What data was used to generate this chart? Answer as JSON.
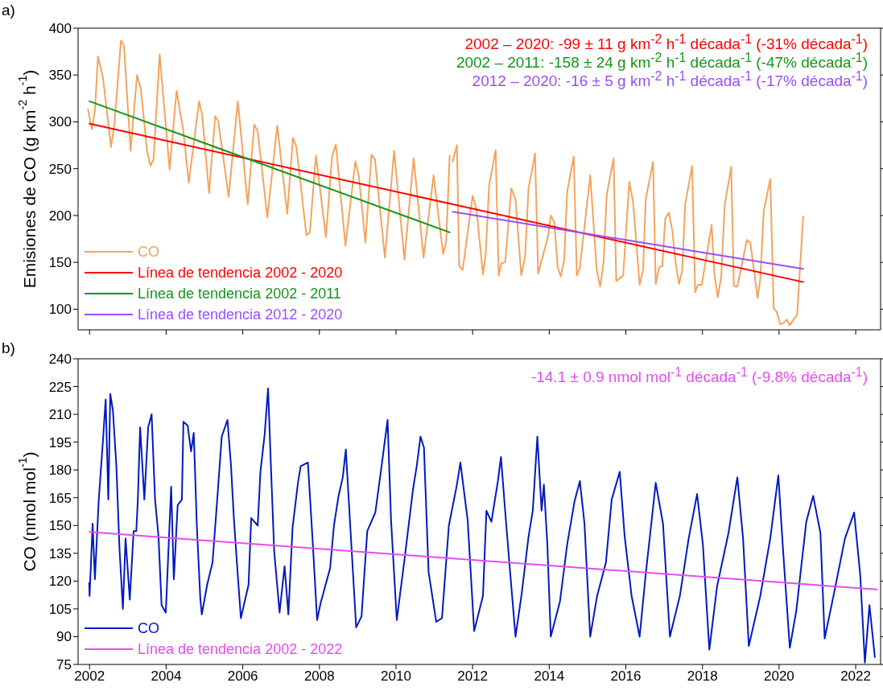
{
  "chart_data": [
    {
      "type": "line",
      "title": "a)",
      "ylabel": "Emisiones de CO (g km$^{-2}$ h$^{-1}$)",
      "xlim": [
        2001.7,
        2022.65
      ],
      "xticks": [
        2002,
        2004,
        2006,
        2008,
        2010,
        2012,
        2014,
        2016,
        2018,
        2020,
        2022
      ],
      "ylim": [
        78,
        400
      ],
      "yticks": [
        100,
        150,
        200,
        250,
        300,
        350,
        400
      ],
      "tick_labels": "y",
      "legend": "bottom left",
      "marker": "none",
      "annotations": [
        "2002 – 2020: -99 ± 11 g km$^{-2}$ h$^{-1}$ década$^{-1}$ (-31% década$^{-1}$)",
        "2002 – 2011: -158 ± 24 g km$^{-2}$ h$^{-1}$ década$^{-1}$ (-47% década$^{-1}$)",
        "2012 – 2020: -16 ± 5 g km$^{-2}$ h$^{-1}$ década$^{-1}$ (-17% década$^{-1}$)"
      ],
      "series": [
        {
          "name": "CO",
          "color": "#f5a35c",
          "x": [
            2001.96,
            2002.06,
            2002.14,
            2002.22,
            2002.35,
            2002.56,
            2002.65,
            2002.82,
            2002.9,
            2003.07,
            2003.24,
            2003.34,
            2003.5,
            2003.59,
            2003.67,
            2003.83,
            2004.09,
            2004.27,
            2004.44,
            2004.59,
            2004.86,
            2004.94,
            2005.12,
            2005.28,
            2005.36,
            2005.63,
            2005.87,
            2006.13,
            2006.3,
            2006.39,
            2006.64,
            2006.9,
            2007.16,
            2007.31,
            2007.4,
            2007.66,
            2007.75,
            2007.91,
            2008.17,
            2008.33,
            2008.43,
            2008.68,
            2008.94,
            2009.03,
            2009.2,
            2009.36,
            2009.45,
            2009.71,
            2009.95,
            2010.22,
            2010.46,
            2010.72,
            2010.98,
            2011.23,
            2011.31,
            2011.4,
            2011.44,
            2011.48,
            2011.59,
            2011.65,
            2011.74,
            2012.0,
            2012.1,
            2012.27,
            2012.34,
            2012.43,
            2012.6,
            2012.68,
            2012.75,
            2012.85,
            2013.01,
            2013.12,
            2013.27,
            2013.37,
            2013.46,
            2013.63,
            2013.71,
            2013.97,
            2014.04,
            2014.13,
            2014.22,
            2014.3,
            2014.39,
            2014.47,
            2014.64,
            2014.72,
            2014.8,
            2015.07,
            2015.24,
            2015.33,
            2015.42,
            2015.5,
            2015.68,
            2015.75,
            2015.93,
            2016.09,
            2016.19,
            2016.36,
            2016.45,
            2016.52,
            2016.71,
            2016.78,
            2016.87,
            2016.95,
            2017.03,
            2017.12,
            2017.21,
            2017.31,
            2017.39,
            2017.47,
            2017.55,
            2017.73,
            2017.81,
            2017.88,
            2017.98,
            2018.24,
            2018.31,
            2018.4,
            2018.49,
            2018.58,
            2018.75,
            2018.82,
            2018.91,
            2019.16,
            2019.25,
            2019.44,
            2019.51,
            2019.6,
            2019.77,
            2019.86,
            2019.94,
            2020.03,
            2020.11,
            2020.2,
            2020.28,
            2020.47,
            2020.63
          ],
          "values": [
            313,
            292,
            312,
            370,
            347,
            273,
            298,
            387,
            381,
            269,
            350,
            335,
            269,
            253,
            260,
            372,
            249,
            333,
            293,
            235,
            322,
            307,
            224,
            306,
            301,
            220,
            322,
            212,
            297,
            290,
            198,
            296,
            202,
            283,
            273,
            179,
            182,
            264,
            177,
            263,
            276,
            168,
            258,
            242,
            171,
            265,
            260,
            155,
            269,
            153,
            261,
            155,
            243,
            159,
            172,
            264,
            null,
            258,
            275,
            146,
            142,
            221,
            207,
            137,
            158,
            232,
            270,
            136,
            149,
            150,
            229,
            217,
            136,
            156,
            229,
            266,
            138,
            178,
            200,
            193,
            145,
            135,
            152,
            226,
            263,
            136,
            144,
            243,
            142,
            124,
            150,
            222,
            261,
            130,
            136,
            236,
            214,
            126,
            142,
            218,
            257,
            127,
            145,
            146,
            197,
            203,
            185,
            146,
            127,
            141,
            212,
            253,
            118,
            126,
            126,
            190,
            138,
            113,
            135,
            211,
            252,
            125,
            124,
            174,
            171,
            112,
            132,
            205,
            239,
            101,
            97,
            84,
            85,
            89,
            83,
            94,
            199
          ]
        },
        {
          "name": "Línea de tendencia 2002 - 2020",
          "color": "#ff0000",
          "x": [
            2002.0,
            2020.63
          ],
          "values": [
            298,
            129
          ]
        },
        {
          "name": "Línea de tendencia 2002 - 2011",
          "color": "#15951a",
          "x": [
            2002.0,
            2011.4
          ],
          "values": [
            322,
            182
          ]
        },
        {
          "name": "Línea de tendencia 2012 - 2020",
          "color": "#9a4dff",
          "x": [
            2011.48,
            2020.63
          ],
          "values": [
            204,
            143
          ]
        }
      ]
    },
    {
      "type": "line",
      "title": "b)",
      "ylabel": "CO (nmol mol$^{-1}$)",
      "xlim": [
        2001.7,
        2022.65
      ],
      "xticks": [
        2002,
        2004,
        2006,
        2008,
        2010,
        2012,
        2014,
        2016,
        2018,
        2020,
        2022
      ],
      "ylim": [
        75,
        240
      ],
      "yticks": [
        75,
        90,
        105,
        120,
        135,
        150,
        165,
        180,
        195,
        210,
        225,
        240
      ],
      "legend": "bottom left",
      "marker": "none",
      "annotations": [
        "-14.1 ± 0.9 nmol mol$^{-1}$ década$^{-1}$ (-9.8% década$^{-1}$)"
      ],
      "series": [
        {
          "name": "CO",
          "color": "#0019c0",
          "x": [
            2001.99,
            2002.0,
            2002.08,
            2002.14,
            2002.24,
            2002.35,
            2002.42,
            2002.49,
            2002.54,
            2002.61,
            2002.7,
            2002.78,
            2002.87,
            2002.94,
            2003.05,
            2003.15,
            2003.22,
            2003.26,
            2003.32,
            2003.43,
            2003.53,
            2003.62,
            2003.71,
            2003.8,
            2003.88,
            2003.99,
            2004.13,
            2004.2,
            2004.3,
            2004.41,
            2004.45,
            2004.56,
            2004.65,
            2004.72,
            2004.8,
            2004.89,
            2004.93,
            2005.07,
            2005.21,
            2005.35,
            2005.45,
            2005.6,
            2005.69,
            2005.77,
            2005.87,
            2005.95,
            2006.15,
            2006.22,
            2006.39,
            2006.46,
            2006.57,
            2006.66,
            2006.74,
            2006.82,
            2006.96,
            2007.09,
            2007.19,
            2007.3,
            2007.44,
            2007.51,
            2007.7,
            2007.82,
            2007.94,
            2008.03,
            2008.28,
            2008.38,
            2008.5,
            2008.61,
            2008.69,
            2008.83,
            2008.96,
            2009.1,
            2009.25,
            2009.46,
            2009.61,
            2009.78,
            2009.87,
            2010.02,
            2010.23,
            2010.44,
            2010.54,
            2010.64,
            2010.73,
            2010.85,
            2011.05,
            2011.2,
            2011.38,
            2011.59,
            2011.68,
            2011.87,
            2012.04,
            2012.27,
            2012.36,
            2012.49,
            2012.66,
            2012.74,
            2012.86,
            2012.97,
            2013.12,
            2013.28,
            2013.46,
            2013.57,
            2013.69,
            2013.8,
            2013.86,
            2013.95,
            2014.04,
            2014.28,
            2014.47,
            2014.66,
            2014.8,
            2014.92,
            2015.07,
            2015.25,
            2015.48,
            2015.63,
            2015.84,
            2015.97,
            2016.15,
            2016.36,
            2016.52,
            2016.67,
            2016.78,
            2016.97,
            2017.15,
            2017.41,
            2017.64,
            2017.86,
            2018.01,
            2018.18,
            2018.38,
            2018.68,
            2018.91,
            2019.06,
            2019.21,
            2019.51,
            2019.77,
            2019.98,
            2020.11,
            2020.28,
            2020.45,
            2020.71,
            2020.89,
            2021.08,
            2021.19,
            2021.45,
            2021.72,
            2021.96,
            2022.12,
            2022.24,
            2022.36,
            2022.5
          ],
          "values": [
            119,
            112,
            151,
            121,
            164,
            196,
            218,
            164,
            221,
            212,
            182,
            138,
            105,
            143,
            110,
            147,
            147,
            164,
            203,
            164,
            203,
            210,
            164,
            144,
            107,
            103,
            171,
            121,
            161,
            164,
            206,
            204,
            190,
            200,
            150,
            111,
            102,
            118,
            130,
            169,
            198,
            207,
            183,
            153,
            123,
            100,
            118,
            154,
            150,
            179,
            199,
            224,
            179,
            136,
            103,
            128,
            102,
            149,
            173,
            182,
            184,
            143,
            99,
            108,
            127,
            150,
            166,
            176,
            191,
            141,
            95,
            101,
            147,
            157,
            180,
            207,
            153,
            99,
            133,
            169,
            182,
            198,
            192,
            125,
            98,
            100,
            150,
            172,
            184,
            153,
            93,
            112,
            158,
            152,
            174,
            187,
            155,
            127,
            90,
            113,
            144,
            158,
            198,
            158,
            172,
            140,
            90,
            109,
            140,
            163,
            174,
            151,
            90,
            112,
            130,
            164,
            179,
            144,
            112,
            90,
            124,
            152,
            173,
            151,
            90,
            112,
            143,
            167,
            140,
            83,
            117,
            146,
            176,
            143,
            85,
            112,
            143,
            177,
            135,
            84,
            104,
            152,
            166,
            146,
            89,
            115,
            143,
            157,
            123,
            76,
            107,
            79
          ]
        },
        {
          "name": "Línea de tendencia 2002 - 2022",
          "color": "#e64cf2",
          "x": [
            2002.0,
            2022.55
          ],
          "values": [
            146.5,
            115.5
          ]
        }
      ]
    }
  ]
}
